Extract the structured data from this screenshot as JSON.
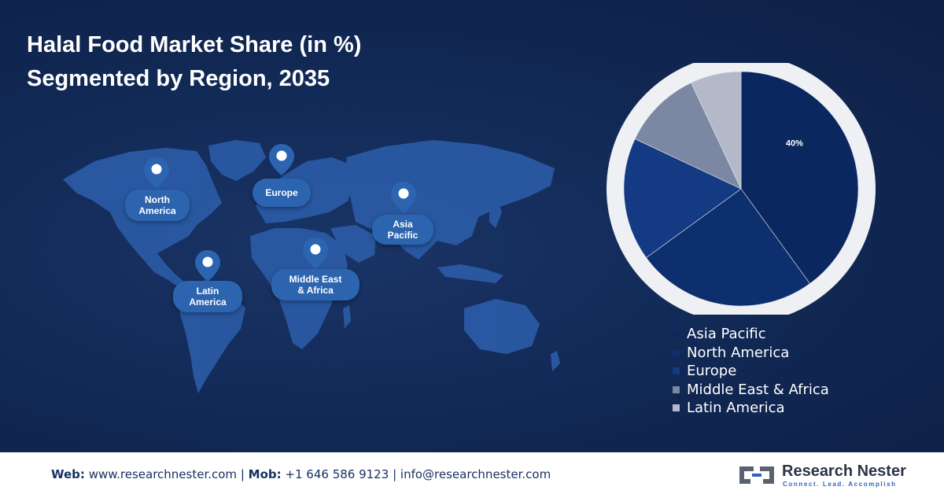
{
  "title": {
    "line1": "Halal Food Market Share (in %)",
    "line2": "Segmented by Region, 2035"
  },
  "map": {
    "markers": [
      {
        "line1": "North",
        "line2": "America"
      },
      {
        "line1": "Europe",
        "line2": ""
      },
      {
        "line1": "Asia",
        "line2": "Pacific"
      },
      {
        "line1": "Latin",
        "line2": "America"
      },
      {
        "line1": "Middle East",
        "line2": "& Africa"
      }
    ],
    "pin_icon": "location-pin-icon"
  },
  "chart_data": {
    "type": "pie",
    "categories": [
      "Asia Pacific",
      "North America",
      "Europe",
      "Middle East & Africa",
      "Latin America"
    ],
    "values": [
      40,
      25,
      17,
      11,
      7
    ],
    "colors": [
      "#0b2760",
      "#0e2f6e",
      "#133a82",
      "#7c87a3",
      "#b3b9c9"
    ],
    "data_labels": [
      "40%",
      "",
      "",
      "",
      ""
    ],
    "legend_position": "bottom-right"
  },
  "footer": {
    "web_label": "Web:",
    "web_value": "www.researchnester.com",
    "sep1": "|",
    "mob_label": "Mob:",
    "mob_value": "+1 646 586 9123",
    "sep2": "|",
    "email": "info@researchnester.com",
    "brand_name": "Research Nester",
    "brand_tagline": "Connect. Lead. Accomplish"
  }
}
